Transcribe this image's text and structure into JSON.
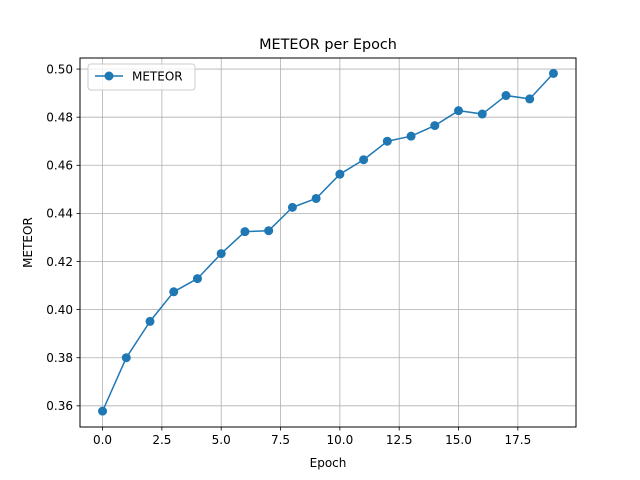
{
  "chart_data": {
    "type": "line",
    "title": "METEOR per Epoch",
    "xlabel": "Epoch",
    "ylabel": "METEOR",
    "xlim": [
      -0.95,
      19.95
    ],
    "ylim": [
      0.3512,
      0.5046
    ],
    "xticks": [
      0.0,
      2.5,
      5.0,
      7.5,
      10.0,
      12.5,
      15.0,
      17.5
    ],
    "xtick_labels": [
      "0.0",
      "2.5",
      "5.0",
      "7.5",
      "10.0",
      "12.5",
      "15.0",
      "17.5"
    ],
    "yticks": [
      0.36,
      0.38,
      0.4,
      0.42,
      0.44,
      0.46,
      0.48,
      0.5
    ],
    "ytick_labels": [
      "0.36",
      "0.38",
      "0.40",
      "0.42",
      "0.44",
      "0.46",
      "0.48",
      "0.50"
    ],
    "grid": true,
    "legend": "top-left",
    "series": [
      {
        "name": "METEOR",
        "color": "#1f77b4",
        "marker": "circle",
        "x": [
          0,
          1,
          2,
          3,
          4,
          5,
          6,
          7,
          8,
          9,
          10,
          11,
          12,
          13,
          14,
          15,
          16,
          17,
          18,
          19
        ],
        "y": [
          0.3578,
          0.38,
          0.3951,
          0.4074,
          0.4129,
          0.4233,
          0.4324,
          0.4328,
          0.4425,
          0.4462,
          0.4563,
          0.4623,
          0.47,
          0.4721,
          0.4765,
          0.4827,
          0.4813,
          0.489,
          0.4876,
          0.4982
        ]
      }
    ]
  }
}
